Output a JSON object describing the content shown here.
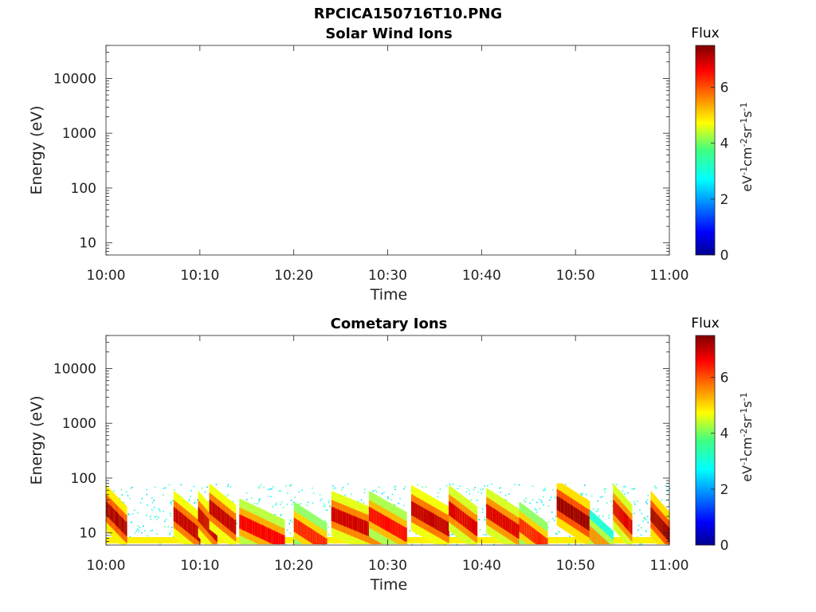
{
  "figure": {
    "title": "RPCICA150716T10.PNG"
  },
  "chart_data": [
    {
      "type": "heatmap",
      "title": "Solar Wind Ions",
      "xlabel": "Time",
      "ylabel": "Energy (eV)",
      "x_ticks": [
        "10:00",
        "10:10",
        "10:20",
        "10:30",
        "10:40",
        "10:50",
        "11:00"
      ],
      "xlim": [
        "10:00",
        "11:00"
      ],
      "yscale": "log",
      "y_ticks": [
        10,
        100,
        1000,
        10000
      ],
      "y_tick_labels": [
        "10",
        "100",
        "1000",
        "10000"
      ],
      "ylim": [
        6,
        40000
      ],
      "colorbar": {
        "title": "Flux",
        "unit_base": "eV",
        "unit_parts": [
          "-1",
          "cm",
          "-2",
          "sr",
          "-1",
          "s",
          "-1"
        ],
        "ticks": [
          "0",
          "2",
          "4",
          "6"
        ],
        "range": [
          0,
          7.5
        ],
        "colormap": "jet"
      },
      "data": []
    },
    {
      "type": "heatmap",
      "title": "Cometary Ions",
      "xlabel": "Time",
      "ylabel": "Energy (eV)",
      "x_ticks": [
        "10:00",
        "10:10",
        "10:20",
        "10:30",
        "10:40",
        "10:50",
        "11:00"
      ],
      "xlim": [
        "10:00",
        "11:00"
      ],
      "yscale": "log",
      "y_ticks": [
        10,
        100,
        1000,
        10000
      ],
      "y_tick_labels": [
        "10",
        "100",
        "1000",
        "10000"
      ],
      "ylim": [
        6,
        40000
      ],
      "colorbar": {
        "title": "Flux",
        "unit_base": "eV",
        "unit_parts": [
          "-1",
          "cm",
          "-2",
          "sr",
          "-1",
          "s",
          "-1"
        ],
        "ticks": [
          "0",
          "2",
          "4",
          "6"
        ],
        "range": [
          0,
          7.5
        ],
        "colormap": "jet"
      },
      "energy_range_ev": [
        6,
        80
      ],
      "background_level": 3,
      "bursts_minutes": [
        {
          "start": 0.0,
          "end": 2.2,
          "peak_ev": 28,
          "level": 7.2
        },
        {
          "start": 7.2,
          "end": 10.0,
          "peak_ev": 22,
          "level": 7.0
        },
        {
          "start": 9.8,
          "end": 11.8,
          "peak_ev": 22,
          "level": 7.0
        },
        {
          "start": 11.0,
          "end": 13.8,
          "peak_ev": 30,
          "level": 7.0
        },
        {
          "start": 14.2,
          "end": 19.0,
          "peak_ev": 16,
          "level": 6.6
        },
        {
          "start": 20.0,
          "end": 23.5,
          "peak_ev": 14,
          "level": 6.3
        },
        {
          "start": 24.0,
          "end": 29.5,
          "peak_ev": 22,
          "level": 6.9
        },
        {
          "start": 28.0,
          "end": 32.0,
          "peak_ev": 22,
          "level": 6.5
        },
        {
          "start": 32.5,
          "end": 36.5,
          "peak_ev": 28,
          "level": 7.0
        },
        {
          "start": 36.5,
          "end": 39.5,
          "peak_ev": 28,
          "level": 6.8
        },
        {
          "start": 40.5,
          "end": 44.0,
          "peak_ev": 25,
          "level": 6.8
        },
        {
          "start": 44.0,
          "end": 47.0,
          "peak_ev": 14,
          "level": 6.3
        },
        {
          "start": 48.0,
          "end": 51.5,
          "peak_ev": 35,
          "level": 7.3
        },
        {
          "start": 51.5,
          "end": 54.0,
          "peak_ev": 10,
          "level": 5.5
        },
        {
          "start": 54.0,
          "end": 56.0,
          "peak_ev": 30,
          "level": 6.8
        },
        {
          "start": 58.0,
          "end": 60.0,
          "peak_ev": 22,
          "level": 7.3
        }
      ]
    }
  ]
}
